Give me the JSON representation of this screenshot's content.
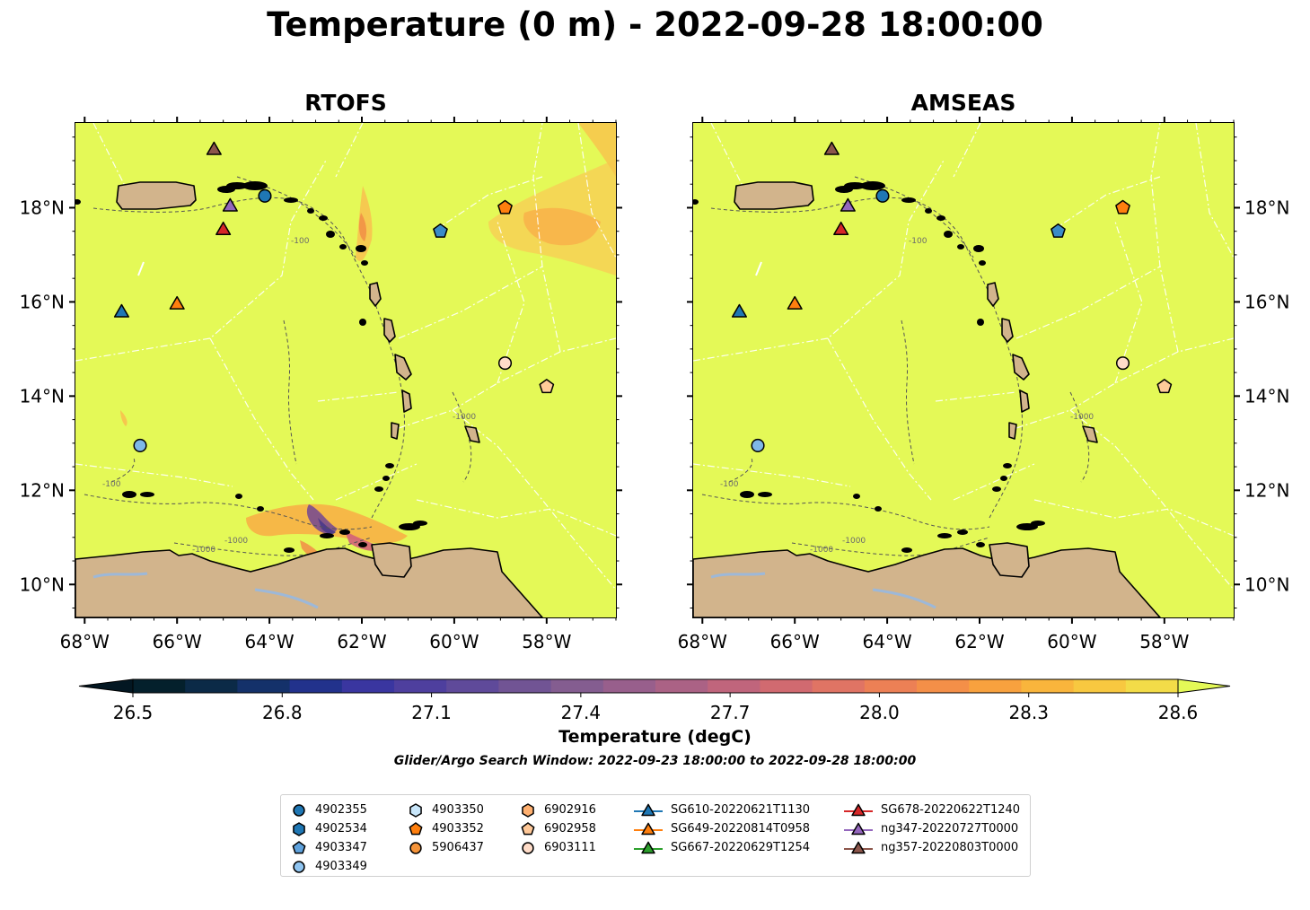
{
  "suptitle": "Temperature (0 m) - 2022-09-28 18:00:00",
  "panels": [
    {
      "title": "RTOFS"
    },
    {
      "title": "AMSEAS"
    }
  ],
  "colors": {
    "ocean_warm": "#e4f957",
    "land": "#d2b48c",
    "river": "#9db8d8",
    "contour": "#555555",
    "eez": "#ffffff"
  },
  "axes": {
    "x_ticks": [
      "68°W",
      "66°W",
      "64°W",
      "62°W",
      "60°W",
      "58°W"
    ],
    "y_ticks": [
      "10°N",
      "12°N",
      "14°N",
      "16°N",
      "18°N"
    ],
    "contour_labels": [
      "-1000",
      "-100"
    ]
  },
  "colorbar": {
    "label": "Temperature (degC)",
    "ticks": [
      "26.5",
      "26.8",
      "27.1",
      "27.4",
      "27.7",
      "28.0",
      "28.3",
      "28.6"
    ],
    "extend": "both",
    "colormap": "thermal"
  },
  "search_window": "Glider/Argo Search Window: 2022-09-23 18:00:00 to 2022-09-28 18:00:00",
  "chart_data": {
    "type": "heatmap",
    "title": "Temperature (0 m) - 2022-09-28 18:00:00",
    "variable": "Temperature (degC)",
    "vmin": 26.5,
    "vmax": 28.6,
    "xlim": [
      -68.2,
      -56.5
    ],
    "ylim": [
      9.3,
      19.8
    ],
    "grid": false,
    "legend": "bottom-center",
    "observations": [
      {
        "id": "4902355",
        "marker": "circle",
        "color": "#1f77b4",
        "lon": -64.1,
        "lat": 18.25
      },
      {
        "id": "4903347",
        "marker": "pentagon",
        "color": "#3a8cc8",
        "lon": -60.3,
        "lat": 17.5
      },
      {
        "id": "4903349",
        "marker": "circle",
        "color": "#7fb8e8",
        "lon": -66.8,
        "lat": 12.95
      },
      {
        "id": "4903352",
        "marker": "pentagon",
        "color": "#ff7f0e",
        "lon": -58.9,
        "lat": 18.0
      },
      {
        "id": "6902958",
        "marker": "pentagon",
        "color": "#ffcc99",
        "lon": -58.0,
        "lat": 14.2
      },
      {
        "id": "6903111",
        "marker": "circle",
        "color": "#ffdcc8",
        "lon": -58.9,
        "lat": 14.7
      },
      {
        "id": "SG610-20220621T1130",
        "marker": "triangle",
        "color": "#1f77b4",
        "lon": -67.2,
        "lat": 15.8
      },
      {
        "id": "SG649-20220814T0958",
        "marker": "triangle",
        "color": "#ff7f0e",
        "lon": -66.0,
        "lat": 15.97
      },
      {
        "id": "SG678-20220622T1240",
        "marker": "triangle",
        "color": "#d62728",
        "lon": -65.0,
        "lat": 17.55
      },
      {
        "id": "ng347-20220727T0000",
        "marker": "triangle",
        "color": "#9467bd",
        "lon": -64.85,
        "lat": 18.05
      },
      {
        "id": "ng357-20220803T0000",
        "marker": "triangle",
        "color": "#8c564b",
        "lon": -65.2,
        "lat": 19.25
      }
    ]
  },
  "legend": {
    "columns": [
      [
        {
          "label": "4902355",
          "marker": "circle",
          "color": "#1f77b4"
        },
        {
          "label": "4902534",
          "marker": "hexagon",
          "color": "#1f77b4"
        },
        {
          "label": "4903347",
          "marker": "pentagon",
          "color": "#5fa2dd"
        },
        {
          "label": "4903349",
          "marker": "circle",
          "color": "#8fc4f0"
        }
      ],
      [
        {
          "label": "4903350",
          "marker": "hexagon",
          "color": "#c8e6fa"
        },
        {
          "label": "4903352",
          "marker": "pentagon",
          "color": "#ff7f0e"
        },
        {
          "label": "5906437",
          "marker": "circle",
          "color": "#f5943a"
        }
      ],
      [
        {
          "label": "6902916",
          "marker": "hexagon",
          "color": "#ffb070"
        },
        {
          "label": "6902958",
          "marker": "pentagon",
          "color": "#ffc898"
        },
        {
          "label": "6903111",
          "marker": "circle",
          "color": "#ffdcc8"
        }
      ],
      [
        {
          "label": "SG610-20220621T1130",
          "marker": "triangle-line",
          "color": "#1f77b4"
        },
        {
          "label": "SG649-20220814T0958",
          "marker": "triangle-line",
          "color": "#ff7f0e"
        },
        {
          "label": "SG667-20220629T1254",
          "marker": "triangle-line",
          "color": "#2ca02c"
        }
      ],
      [
        {
          "label": "SG678-20220622T1240",
          "marker": "triangle-line",
          "color": "#d62728"
        },
        {
          "label": "ng347-20220727T0000",
          "marker": "triangle-line",
          "color": "#9467bd"
        },
        {
          "label": "ng357-20220803T0000",
          "marker": "triangle-line",
          "color": "#8c564b"
        }
      ]
    ]
  }
}
